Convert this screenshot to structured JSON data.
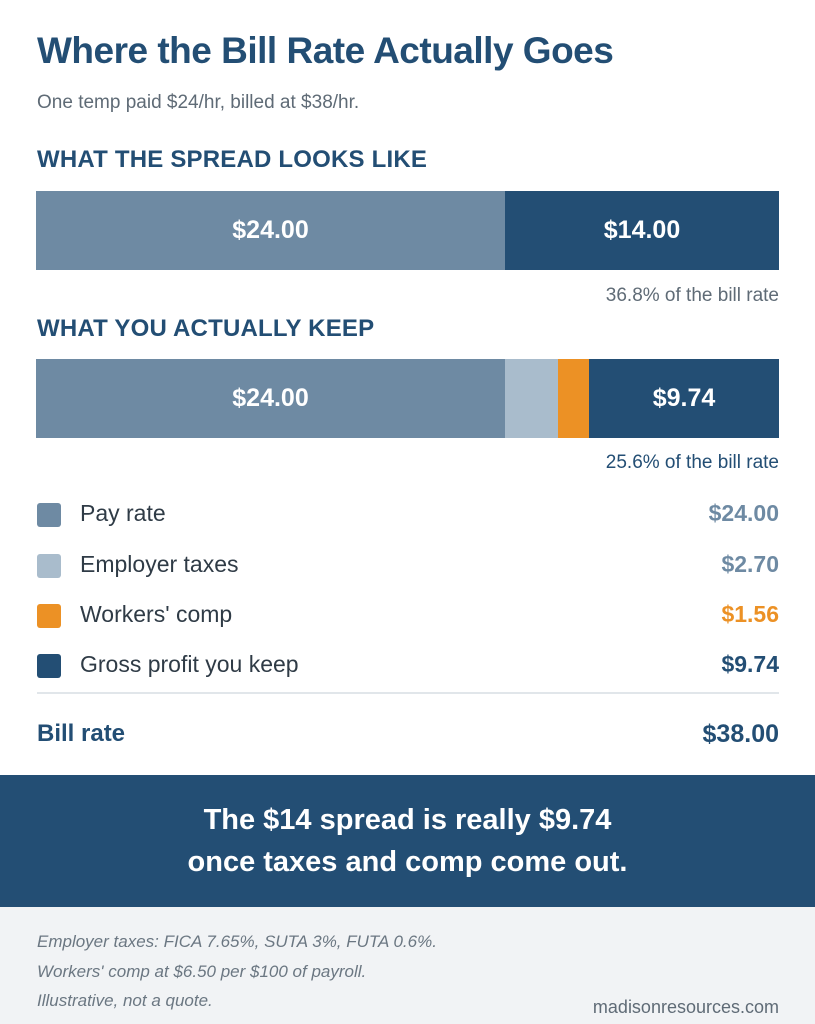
{
  "title": "Where the Bill Rate Actually Goes",
  "subtitle": "One temp paid $24/hr, billed at $38/hr.",
  "colors": {
    "pay_rate": "#6e8aa3",
    "employer_taxes": "#a9bccc",
    "workers_comp": "#ec9125",
    "gross_profit": "#234e74",
    "navy": "#234e74"
  },
  "chart_data": [
    {
      "type": "bar",
      "title": "WHAT THE SPREAD LOOKS LIKE",
      "stacked": true,
      "orientation": "horizontal",
      "total": 38,
      "series": [
        {
          "value": 24.0,
          "label": "$24.00",
          "color": "#6e8aa3"
        },
        {
          "value": 14.0,
          "label": "$14.00",
          "color": "#234e74"
        }
      ],
      "annotation": "36.8% of the bill rate"
    },
    {
      "type": "bar",
      "title": "WHAT YOU ACTUALLY KEEP",
      "stacked": true,
      "orientation": "horizontal",
      "total": 38,
      "series": [
        {
          "name": "Pay rate",
          "value": 24.0,
          "label": "$24.00",
          "color": "#6e8aa3"
        },
        {
          "name": "Employer taxes",
          "value": 2.7,
          "label": "",
          "color": "#a9bccc"
        },
        {
          "name": "Workers' comp",
          "value": 1.56,
          "label": "",
          "color": "#ec9125"
        },
        {
          "name": "Gross profit you keep",
          "value": 9.74,
          "label": "$9.74",
          "color": "#234e74"
        }
      ],
      "annotation": "25.6% of the bill rate"
    }
  ],
  "legend": [
    {
      "label": "Pay rate",
      "value": "$24.00",
      "color": "#6e8aa3",
      "value_color": "#6e8aa3"
    },
    {
      "label": "Employer taxes",
      "value": "$2.70",
      "color": "#a9bccc",
      "value_color": "#6e8aa3"
    },
    {
      "label": "Workers' comp",
      "value": "$1.56",
      "color": "#ec9125",
      "value_color": "#ec9125"
    },
    {
      "label": "Gross profit you keep",
      "value": "$9.74",
      "color": "#234e74",
      "value_color": "#234e74"
    }
  ],
  "total": {
    "label": "Bill rate",
    "value": "$38.00"
  },
  "banner": {
    "line1": "The $14 spread is really $9.74",
    "line2": "once taxes and comp come out."
  },
  "footer": {
    "notes": [
      "Employer taxes: FICA 7.65%, SUTA 3%, FUTA 0.6%.",
      "Workers' comp at $6.50 per $100 of payroll.",
      "Illustrative, not a quote."
    ],
    "site": "madisonresources.com"
  }
}
